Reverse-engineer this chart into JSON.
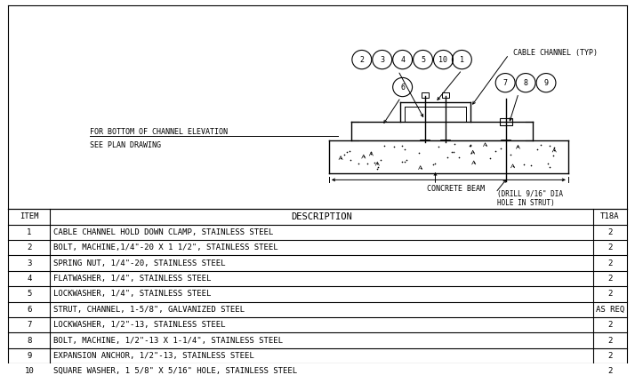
{
  "bg_color": "#ffffff",
  "line_color": "#000000",
  "font_name": "monospace",
  "table_header": [
    "ITEM",
    "DESCRIPTION",
    "T18A"
  ],
  "table_rows": [
    [
      "1",
      "CABLE CHANNEL HOLD DOWN CLAMP, STAINLESS STEEL",
      "2"
    ],
    [
      "2",
      "BOLT, MACHINE,1/4\"-20 X 1 1/2\", STAINLESS STEEL",
      "2"
    ],
    [
      "3",
      "SPRING NUT, 1/4\"-20, STAINLESS STEEL",
      "2"
    ],
    [
      "4",
      "FLATWASHER, 1/4\", STAINLESS STEEL",
      "2"
    ],
    [
      "5",
      "LOCKWASHER, 1/4\", STAINLESS STEEL",
      "2"
    ],
    [
      "6",
      "STRUT, CHANNEL, 1-5/8\", GALVANIZED STEEL",
      "AS REQ"
    ],
    [
      "7",
      "LOCKWASHER, 1/2\"-13, STAINLESS STEEL",
      "2"
    ],
    [
      "8",
      "BOLT, MACHINE, 1/2\"-13 X 1-1/4\", STAINLESS STEEL",
      "2"
    ],
    [
      "9",
      "EXPANSION ANCHOR, 1/2\"-13, STAINLESS STEEL",
      "2"
    ],
    [
      "10",
      "SQUARE WASHER, 1 5/8\" X 5/16\" HOLE, STAINLESS STEEL",
      "2"
    ]
  ],
  "table_font_size": 6.5,
  "header_font_size": 7.5,
  "note_line1": "FOR BOTTOM OF CHANNEL ELEVATION",
  "note_line2": "SEE PLAN DRAWING",
  "label_cable_channel": "CABLE CHANNEL (TYP)",
  "label_concrete_beam": "CONCRETE BEAM",
  "label_drill1": "(DRILL 9/16\" DIA",
  "label_drill2": "HOLE IN STRUT)",
  "drawing_font_size": 6.0
}
